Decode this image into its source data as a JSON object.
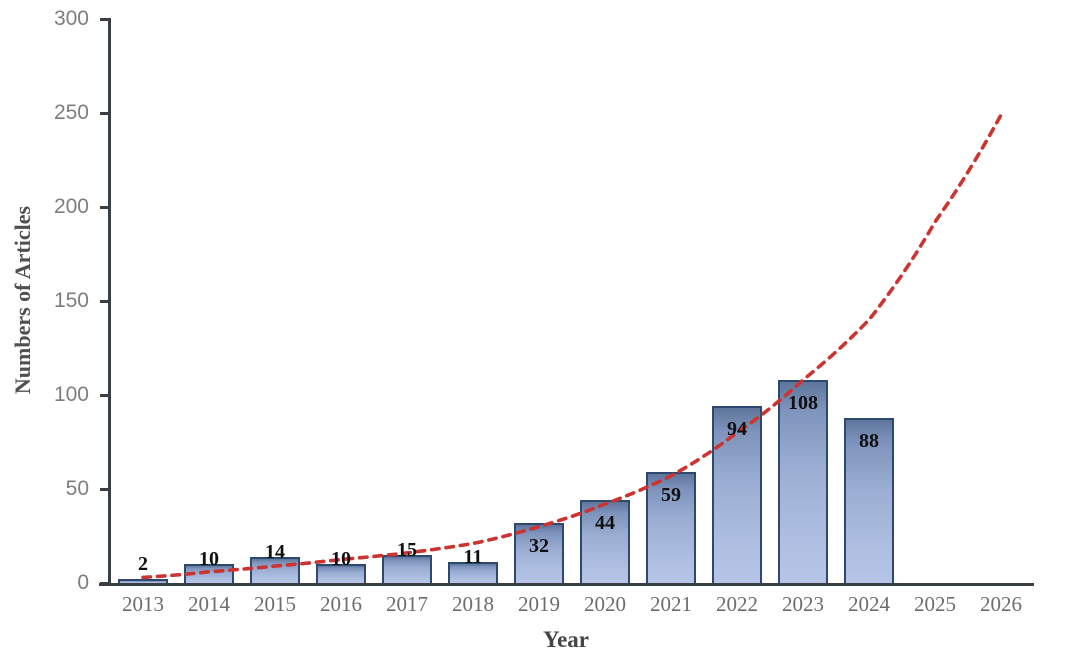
{
  "chart_data": {
    "type": "bar",
    "title": "",
    "xlabel": "Year",
    "ylabel": "Numbers of Articles",
    "ylim": [
      0,
      300
    ],
    "yticks": [
      0,
      50,
      100,
      150,
      200,
      250,
      300
    ],
    "grid": false,
    "legend": "none",
    "categories": [
      "2013",
      "2014",
      "2015",
      "2016",
      "2017",
      "2018",
      "2019",
      "2020",
      "2021",
      "2022",
      "2023",
      "2024",
      "2025",
      "2026"
    ],
    "bars": {
      "years": [
        2013,
        2014,
        2015,
        2016,
        2017,
        2018,
        2019,
        2020,
        2021,
        2022,
        2023,
        2024
      ],
      "values": [
        2,
        10,
        14,
        10,
        15,
        11,
        32,
        44,
        59,
        94,
        108,
        88
      ]
    },
    "trend": {
      "type": "exponential",
      "style": "dashed",
      "color": "#cc3431",
      "years": [
        2013,
        2014,
        2015,
        2016,
        2017,
        2018,
        2019,
        2020,
        2021,
        2022,
        2023,
        2024,
        2025,
        2026
      ],
      "values": [
        3,
        6,
        9,
        12.5,
        16,
        21,
        30,
        42,
        57,
        80,
        108,
        140,
        192,
        249
      ]
    },
    "colors": {
      "bar_gradient_top": "#5e759c",
      "bar_gradient_bottom": "#b6c5e8",
      "bar_border": "#2d4a6e",
      "axis": "#3a3e45",
      "y_tick_text": "#7e7e7e",
      "x_tick_text": "#6d6d6d",
      "value_label_text": "#101010",
      "trend_line": "#cc3431"
    }
  }
}
